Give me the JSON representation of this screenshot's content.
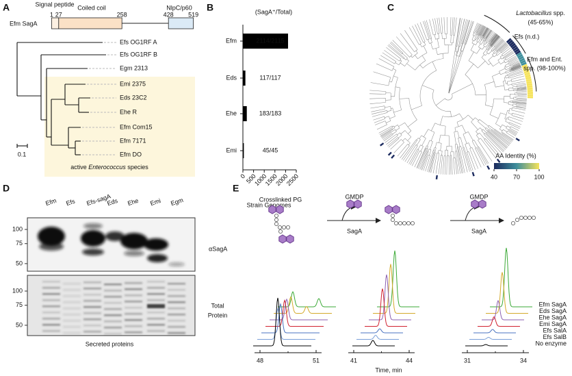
{
  "panels": [
    "A",
    "B",
    "C",
    "D",
    "E"
  ],
  "a": {
    "protein": "Efm SagA",
    "protein_color": "#3aa935",
    "domains": [
      "Signal peptide",
      "Coiled coil",
      "NlpC/p60"
    ],
    "residues": [
      1,
      27,
      258,
      428,
      519
    ],
    "leaves": [
      {
        "label": "Efs OG1RF A",
        "color": "#3b5ba5"
      },
      {
        "label": "Efs OG1RF B",
        "color": "#3b5ba5"
      },
      {
        "label": "Egm 2313",
        "color": "#33a9c7"
      },
      {
        "label": "Emi 2375",
        "color": "#d8262b"
      },
      {
        "label": "Eds 23C2",
        "color": "#a59a24"
      },
      {
        "label": "Ehe R",
        "color": "#7d5bb0"
      },
      {
        "label": "Efm Com15",
        "color": "#3aa935"
      },
      {
        "label": "Efm 7171",
        "color": "#3aa935"
      },
      {
        "label": "Efm DO",
        "color": "#3aa935"
      }
    ],
    "scale_label": "0.1",
    "clade": {
      "before": "active ",
      "genus": "Enterococcus",
      "after": " species"
    }
  },
  "chart_data": {
    "type": "bar",
    "orientation": "horizontal",
    "title": "(SagA⁺/Total)",
    "categories": [
      "Efm",
      "Eds",
      "Ehe",
      "Emi"
    ],
    "category_colors": [
      "#3aa935",
      "#a59a24",
      "#7d5bb0",
      "#d8262b"
    ],
    "values": [
      2115,
      117,
      183,
      45
    ],
    "value_labels": [
      "2114/2115",
      "117/117",
      "183/183",
      "45/45"
    ],
    "color": "#000000",
    "xlabel": "Strain Genomes",
    "xlim": [
      0,
      2500
    ],
    "xticks": [
      0,
      500,
      1000,
      1500,
      2000,
      2500
    ]
  },
  "c": {
    "lacto": {
      "genus": "Lactobacillus",
      "rest": " spp.",
      "range": "(45-65%)"
    },
    "efs": {
      "text": "Efs (n.d.)",
      "color": "#3b5ba5"
    },
    "efm": {
      "lines": [
        "Efm and Ent.",
        "spp. (98-100%)"
      ],
      "color": "#3aa935"
    },
    "legend_title": "AA Identity (%)",
    "legend_ticks": [
      40,
      70,
      100
    ],
    "colormap": [
      "#1b2a5e",
      "#3f8f9c",
      "#f6e35a"
    ]
  },
  "d": {
    "lanes": [
      {
        "label": "Efm",
        "color": "#3aa935"
      },
      {
        "label": "Efs",
        "color": "#3b5ba5"
      },
      {
        "label": "Efs-sagA",
        "color": "#f0932b"
      },
      {
        "label": "Eds",
        "color": "#a59a24"
      },
      {
        "label": "Ehe",
        "color": "#7d5bb0"
      },
      {
        "label": "Emi",
        "color": "#d8262b"
      },
      {
        "label": "Egm",
        "color": "#33a9c7"
      }
    ],
    "markers_top": [
      100,
      75,
      50
    ],
    "markers_bottom": [
      100,
      75,
      50
    ],
    "blot_label": "αSagA",
    "total_label": [
      "Total",
      "Protein"
    ],
    "caption": "Secreted proteins"
  },
  "e": {
    "substrate": "Crosslinked PG",
    "products": [
      "GMDP",
      "GMDP"
    ],
    "enzymes": [
      "SagA",
      "SagA"
    ],
    "legend": [
      {
        "name": "Efm SagA",
        "color": "#3aa935"
      },
      {
        "name": "Eds SagA",
        "color": "#d4a92a"
      },
      {
        "name": "Ehe SagA",
        "color": "#8b5fb0"
      },
      {
        "name": "Emi SagA",
        "color": "#d0202f"
      },
      {
        "name": "Efs SalA",
        "color": "#4a73c0"
      },
      {
        "name": "Efs SalB",
        "color": "#7a9fd8"
      },
      {
        "name": "No enzyme",
        "color": "#000000"
      }
    ],
    "axes": [
      [
        48,
        51
      ],
      [
        41,
        44
      ],
      [
        31,
        34
      ]
    ],
    "xlabel": "Time, min"
  }
}
